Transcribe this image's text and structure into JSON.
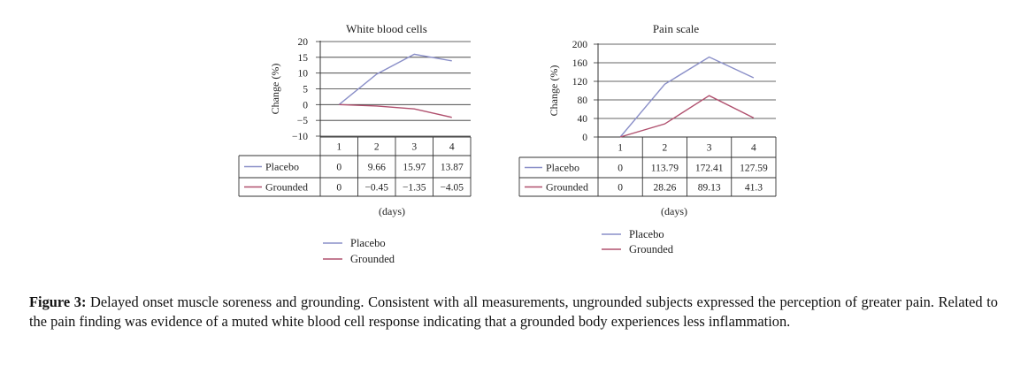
{
  "chart_data": [
    {
      "type": "line",
      "title": "White blood cells",
      "ylabel": "Change (%)",
      "xlabel": "(days)",
      "categories": [
        "1",
        "2",
        "3",
        "4"
      ],
      "yticks": [
        20,
        15,
        10,
        5,
        0,
        -5,
        -10
      ],
      "ytick_labels": [
        "20",
        "15",
        "10",
        "5",
        "0",
        "−5",
        "−10"
      ],
      "ylim": [
        -10,
        20
      ],
      "grid": true,
      "legend": "bottom",
      "series": [
        {
          "name": "Placebo",
          "values": [
            0,
            9.66,
            15.97,
            13.87
          ],
          "labels": [
            "0",
            "9.66",
            "15.97",
            "13.87"
          ],
          "color": "#8a8fc8"
        },
        {
          "name": "Grounded",
          "values": [
            0,
            -0.45,
            -1.35,
            -4.05
          ],
          "labels": [
            "0",
            "−0.45",
            "−1.35",
            "−4.05"
          ],
          "color": "#b0506e"
        }
      ]
    },
    {
      "type": "line",
      "title": "Pain scale",
      "ylabel": "Change (%)",
      "xlabel": "(days)",
      "categories": [
        "1",
        "2",
        "3",
        "4"
      ],
      "yticks": [
        200,
        160,
        120,
        80,
        40,
        0
      ],
      "ytick_labels": [
        "200",
        "160",
        "120",
        "80",
        "40",
        "0"
      ],
      "ylim": [
        0,
        200
      ],
      "grid": true,
      "legend": "bottom",
      "series": [
        {
          "name": "Placebo",
          "values": [
            0,
            113.79,
            172.41,
            127.59
          ],
          "labels": [
            "0",
            "113.79",
            "172.41",
            "127.59"
          ],
          "color": "#8a8fc8"
        },
        {
          "name": "Grounded",
          "values": [
            0,
            28.26,
            89.13,
            41.3
          ],
          "labels": [
            "0",
            "28.26",
            "89.13",
            "41.3"
          ],
          "color": "#b0506e"
        }
      ]
    }
  ],
  "caption": {
    "label": "Figure 3:",
    "text": " Delayed onset muscle soreness and grounding. Consistent with all measurements, ungrounded subjects expressed the perception of greater pain. Related to the pain finding was evidence of a muted white blood cell response indicating that a grounded body experiences less inflammation."
  }
}
